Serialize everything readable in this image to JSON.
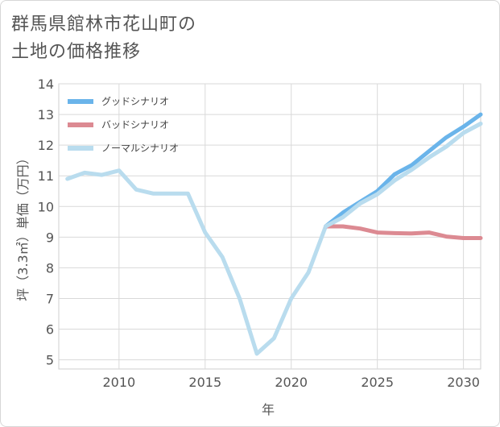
{
  "title_lines": [
    "群馬県館林市花山町の",
    "土地の価格推移"
  ],
  "chart_data": {
    "type": "line",
    "title": "群馬県館林市花山町の土地の価格推移",
    "xlabel": "年",
    "ylabel": "坪（3.3㎡）単価（万円）",
    "xlim": [
      2006.5,
      2031
    ],
    "ylim": [
      4.7,
      14
    ],
    "x_ticks": [
      2010,
      2015,
      2020,
      2025,
      2030
    ],
    "y_ticks": [
      5,
      6,
      7,
      8,
      9,
      10,
      11,
      12,
      13,
      14
    ],
    "grid": true,
    "legend_position": "top-left",
    "series": [
      {
        "name": "グッドシナリオ",
        "color": "#6ab4ea",
        "x": [
          2022,
          2023,
          2024,
          2025,
          2026,
          2027,
          2028,
          2029,
          2030,
          2031
        ],
        "values": [
          9.35,
          9.8,
          10.15,
          10.5,
          11.05,
          11.35,
          11.8,
          12.25,
          12.6,
          13.0
        ]
      },
      {
        "name": "バッドシナリオ",
        "color": "#dc8a92",
        "x": [
          2022,
          2023,
          2024,
          2025,
          2026,
          2027,
          2028,
          2029,
          2030,
          2031
        ],
        "values": [
          9.35,
          9.35,
          9.28,
          9.15,
          9.13,
          9.12,
          9.15,
          9.02,
          8.97,
          8.97
        ]
      },
      {
        "name": "ノーマルシナリオ",
        "color": "#b9dcee",
        "x": [
          2007,
          2008,
          2009,
          2010,
          2011,
          2012,
          2013,
          2014,
          2015,
          2016,
          2017,
          2018,
          2019,
          2020,
          2021,
          2022,
          2023,
          2024,
          2025,
          2026,
          2027,
          2028,
          2029,
          2030,
          2031
        ],
        "values": [
          10.9,
          11.1,
          11.03,
          11.17,
          10.55,
          10.42,
          10.42,
          10.42,
          9.15,
          8.35,
          7.0,
          5.2,
          5.7,
          7.0,
          7.85,
          9.35,
          9.65,
          10.1,
          10.4,
          10.85,
          11.2,
          11.6,
          11.95,
          12.4,
          12.7
        ]
      }
    ]
  }
}
